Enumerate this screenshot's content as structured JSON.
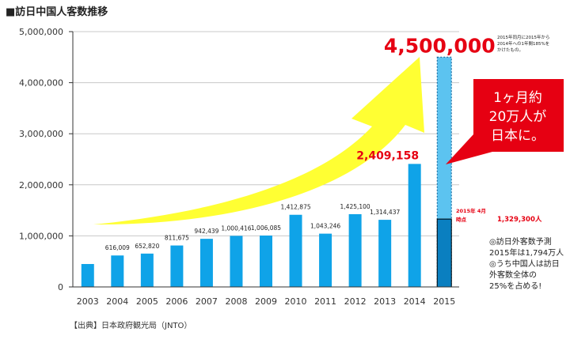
{
  "page": {
    "title": "■訪日中国人客数推移",
    "source": "【出典】日本政府観光局（JNTO）"
  },
  "callout": {
    "line1": "1ヶ月約",
    "line2": "20万人が",
    "line3": "日本に。"
  },
  "forecast_note": {
    "line1": "2015年同月に2015年から",
    "line2": "2014年への1年間185%を",
    "line3": "かけたもの。"
  },
  "side_note": {
    "line1": "◎訪日外客数予測",
    "line2": "2015年は1,794万人",
    "line3": "◎うち中国人は訪日",
    "line4": "外客数全体の",
    "line5": "25%を占める!"
  },
  "colors": {
    "bar": "#0fa3e8",
    "bar_dark": "#0a7fc0",
    "forecast": "#5cc3f0",
    "highlight": "#e60012",
    "arrow": "#ffff33",
    "axis": "#333333",
    "grid": "#c8c8c8"
  },
  "chart_data": {
    "type": "bar",
    "title": "訪日中国人客数推移",
    "xlabel": "",
    "ylabel": "",
    "ylim": [
      0,
      5000000
    ],
    "yticks": [
      0,
      1000000,
      2000000,
      3000000,
      4000000,
      5000000
    ],
    "ytick_labels": [
      "0",
      "1,000,000",
      "2,000,000",
      "3,000,000",
      "4,000,000",
      "5,000,000"
    ],
    "grid": true,
    "categories": [
      "2003",
      "2004",
      "2005",
      "2006",
      "2007",
      "2008",
      "2009",
      "2010",
      "2011",
      "2012",
      "2013",
      "2014",
      "2015"
    ],
    "values": [
      448782,
      616009,
      652820,
      811675,
      942439,
      1000416,
      1006085,
      1412875,
      1043246,
      1425100,
      1314437,
      2409158,
      1329300
    ],
    "data_labels": [
      "",
      "616,009",
      "652,820",
      "811,675",
      "942,439",
      "1,000,416",
      "1,006,085",
      "1,412,875",
      "1,043,246",
      "1,425,100",
      "1,314,437",
      "2,409,158",
      ""
    ],
    "forecast": {
      "category": "2015",
      "value": 4500000,
      "label": "4,500,000"
    },
    "annotations": {
      "partial_label_line1": "2015年 4月",
      "partial_label_line2": "時点",
      "partial_value_label": "1,329,300人"
    }
  }
}
